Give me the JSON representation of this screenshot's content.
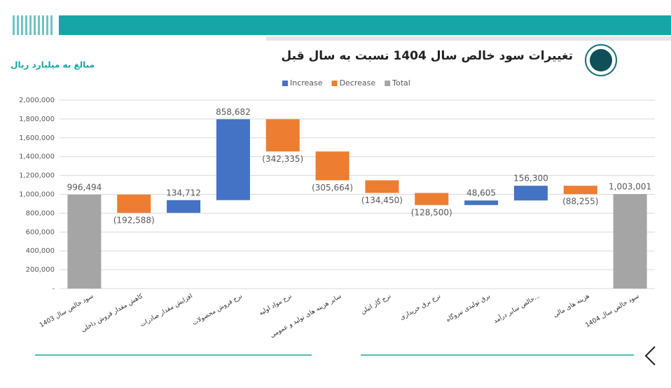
{
  "chart_data": {
    "type": "waterfall",
    "title": "تغییرات سود خالص سال 1404 نسبت به سال قبل",
    "subtitle": "مبالغ به میلیارد ریال",
    "categories": [
      "سود خالص سال 1403",
      "کاهش مقدار فروش داخلی",
      "افزایش مقدار صادرات",
      "نرخ فروش محصولات",
      "نرخ مواد اولیه",
      "سایر هزینه های تولید و عمومی",
      "نرخ گاز اتیلن",
      "نرخ برق خریداری",
      "برق تولیدی نیروگاه",
      "خالص سایر درآمد...",
      "هزینه های مالی",
      "سود خالص سال 1404"
    ],
    "series": [
      {
        "name": "Increase",
        "color": "#4472c4",
        "values": [
          null,
          null,
          134712,
          858682,
          null,
          null,
          null,
          null,
          48605,
          156300,
          null,
          null
        ]
      },
      {
        "name": "Decrease",
        "color": "#ed7d31",
        "values": [
          null,
          -192588,
          null,
          null,
          -342335,
          -305664,
          -134450,
          -128500,
          null,
          null,
          -88255,
          null
        ]
      },
      {
        "name": "Total",
        "color": "#a5a5a5",
        "values": [
          996494,
          null,
          null,
          null,
          null,
          null,
          null,
          null,
          null,
          null,
          null,
          1003001
        ]
      }
    ],
    "value_labels": [
      "996,494",
      "(192,588)",
      "134,712",
      "858,682",
      "(342,335)",
      "(305,664)",
      "(134,450)",
      "(128,500)",
      "48,605",
      "156,300",
      "(88,255)",
      "1,003,001"
    ],
    "ylim": [
      0,
      2000000
    ],
    "yticks": [
      {
        "value": 0,
        "label": "-"
      },
      {
        "value": 200000,
        "label": "200,000"
      },
      {
        "value": 400000,
        "label": "400,000"
      },
      {
        "value": 600000,
        "label": "600,000"
      },
      {
        "value": 800000,
        "label": "800,000"
      },
      {
        "value": 1000000,
        "label": "1,000,000"
      },
      {
        "value": 1200000,
        "label": "1,200,000"
      },
      {
        "value": 1400000,
        "label": "1,400,000"
      },
      {
        "value": 1600000,
        "label": "1,600,000"
      },
      {
        "value": 1800000,
        "label": "1,800,000"
      },
      {
        "value": 2000000,
        "label": "2,000,000"
      }
    ],
    "grid": true,
    "legend": "top"
  }
}
